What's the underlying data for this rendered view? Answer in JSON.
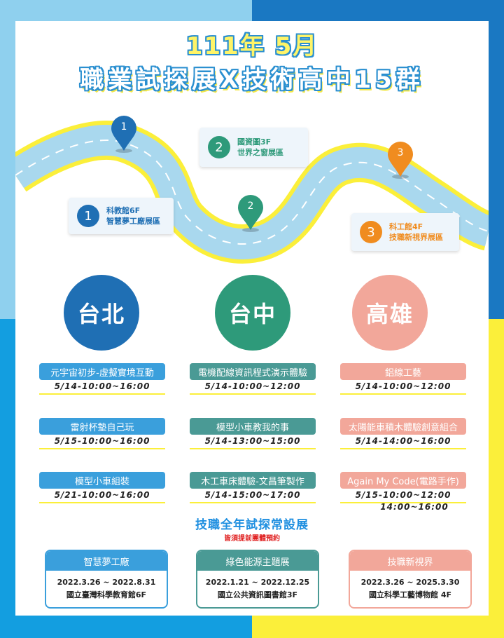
{
  "header": {
    "line1": "111年 5月",
    "line2": "職業試探展X技術高中15群"
  },
  "colors": {
    "blue": "#1f6fb4",
    "green": "#2e9a7a",
    "salmon": "#f2a79a",
    "orange": "#f08c1f",
    "sky": "#3a9fdc",
    "teal": "#4a9a95"
  },
  "route": {
    "pins": [
      {
        "num": "1",
        "color": "#1f6fb4"
      },
      {
        "num": "2",
        "color": "#2e9a7a"
      },
      {
        "num": "3",
        "color": "#f08c1f"
      }
    ],
    "callouts": [
      {
        "num": "1",
        "line1": "科教館6F",
        "line2": "智慧夢工廠展區"
      },
      {
        "num": "2",
        "line1": "國資圖3F",
        "line2": "世界之窗展區"
      },
      {
        "num": "3",
        "line1": "科工館4F",
        "line2": "技職新視界展區"
      }
    ]
  },
  "cities": [
    "台北",
    "台中",
    "高雄"
  ],
  "events": {
    "taipei": [
      {
        "name": "元宇宙初步-虛擬實境互動",
        "time": "5/14-10:00~16:00"
      },
      {
        "name": "雷射杯墊自己玩",
        "time": "5/15-10:00~16:00"
      },
      {
        "name": "模型小車組裝",
        "time": "5/21-10:00~16:00"
      }
    ],
    "taichung": [
      {
        "name": "電機配線資訊程式演示體驗",
        "time": "5/14-10:00~12:00"
      },
      {
        "name": "模型小車教我的事",
        "time": "5/14-13:00~15:00"
      },
      {
        "name": "木工車床體驗-文昌筆製作",
        "time": "5/14-15:00~17:00"
      }
    ],
    "kaohsiung": [
      {
        "name": "鋁線工藝",
        "time": "5/14-10:00~12:00"
      },
      {
        "name": "太陽能車積木體驗創意組合",
        "time": "5/14-14:00~16:00"
      },
      {
        "name": "Again My Code(電路手作)",
        "time": "5/15-10:00~12:00",
        "time2": "14:00~16:00"
      }
    ]
  },
  "permanent": {
    "title": "技職全年試探常設展",
    "note": "皆須提前團體預約",
    "exhibits": [
      {
        "name": "智慧夢工廠",
        "dates": "2022.3.26 ~ 2022.8.31",
        "venue": "國立臺灣科學教育館6F"
      },
      {
        "name": "綠色能源主題展",
        "dates": "2022.1.21 ~ 2022.12.25",
        "venue": "國立公共資訊圖書館3F"
      },
      {
        "name": "技職新視界",
        "dates": "2022.3.26 ~ 2025.3.30",
        "venue": "國立科學工藝博物館 4F"
      }
    ]
  }
}
